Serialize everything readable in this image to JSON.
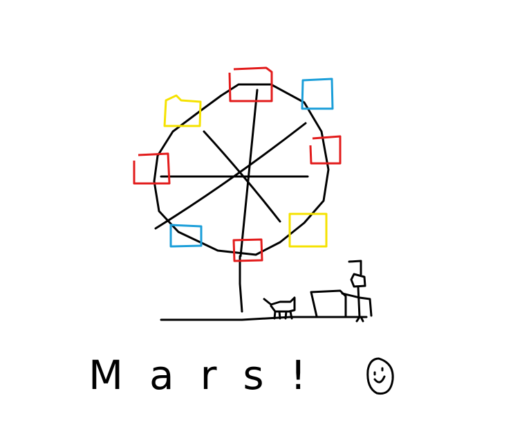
{
  "caption": "Mars!"
}
